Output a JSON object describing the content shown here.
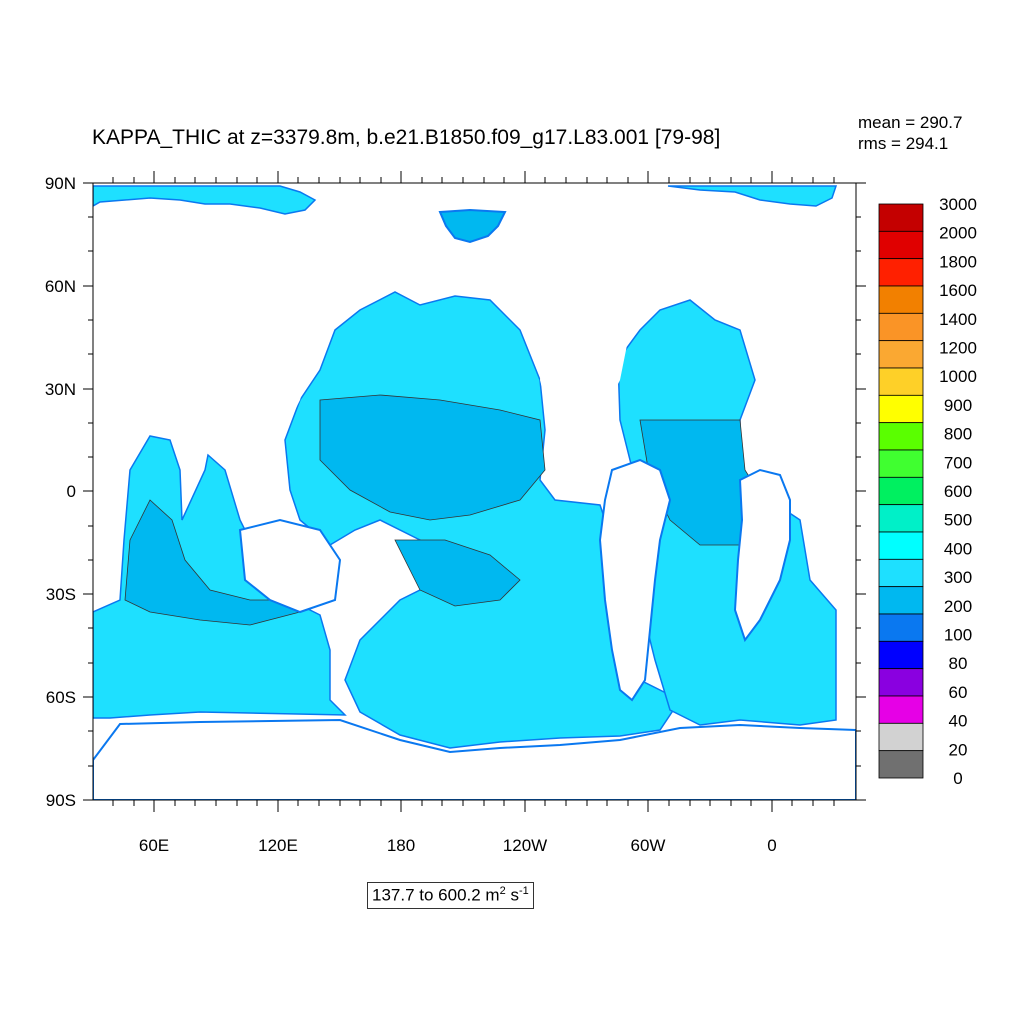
{
  "title": "KAPPA_THIC at z=3379.8m, b.e21.B1850.f09_g17.L83.001 [79-98]",
  "stats": {
    "mean": "mean = 290.7",
    "rms": "rms = 294.1"
  },
  "units_box": {
    "range_text": "137.7 to 600.2 m",
    "sup1": "2",
    "mid": " s",
    "sup2": "-1"
  },
  "axes": {
    "y_ticks": [
      "90N",
      "60N",
      "30N",
      "0",
      "30S",
      "60S",
      "90S"
    ],
    "x_ticks": [
      "60E",
      "120E",
      "180",
      "120W",
      "60W",
      "0"
    ]
  },
  "colorbar": {
    "labels": [
      "3000",
      "2000",
      "1800",
      "1600",
      "1400",
      "1200",
      "1000",
      "900",
      "800",
      "700",
      "600",
      "500",
      "400",
      "300",
      "200",
      "100",
      "80",
      "60",
      "40",
      "20",
      "0"
    ],
    "colors": [
      "#c40000",
      "#e00000",
      "#ff2000",
      "#f28000",
      "#fa9426",
      "#faa832",
      "#fed028",
      "#ffff00",
      "#5aff00",
      "#40ff30",
      "#00f060",
      "#00f0c8",
      "#00ffff",
      "#1ee0ff",
      "#00b8f0",
      "#0a78f0",
      "#0000ff",
      "#8a00e0",
      "#e600e6",
      "#d2d2d2",
      "#707070"
    ]
  },
  "colors": {
    "ocean_main": "#1ee0ff",
    "ocean_mid": "#00b8f0",
    "ocean_edge": "#0a78f0",
    "land": "#ffffff"
  }
}
